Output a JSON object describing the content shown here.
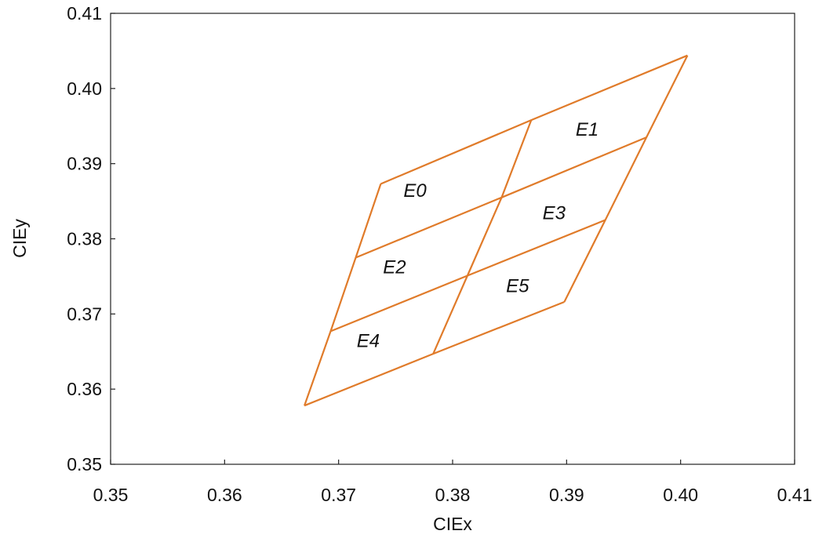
{
  "chart_data": {
    "type": "line",
    "title": "",
    "xlabel": "CIEx",
    "ylabel": "CIEy",
    "xlim": [
      0.35,
      0.41
    ],
    "ylim": [
      0.35,
      0.41
    ],
    "x_ticks": [
      "0.35",
      "0.36",
      "0.37",
      "0.38",
      "0.39",
      "0.40",
      "0.41"
    ],
    "y_ticks": [
      "0.35",
      "0.36",
      "0.37",
      "0.38",
      "0.39",
      "0.40",
      "0.41"
    ],
    "grid": false,
    "line_color": "#e07b2a",
    "quadrangles": [
      {
        "name": "E0",
        "corners": [
          [
            0.3737,
            0.3873
          ],
          [
            0.3843,
            0.3855
          ],
          [
            0.3813,
            0.3751
          ],
          [
            0.3715,
            0.3775
          ]
        ]
      },
      {
        "name": "E1",
        "corners": [
          [
            0.3869,
            0.3958
          ],
          [
            0.4006,
            0.4044
          ],
          [
            0.397,
            0.3935
          ],
          [
            0.3843,
            0.3855
          ]
        ]
      },
      {
        "name": "E2",
        "corners": [
          [
            0.3715,
            0.3775
          ],
          [
            0.3813,
            0.3751
          ],
          [
            0.3783,
            0.3647
          ],
          [
            0.3693,
            0.3677
          ]
        ]
      },
      {
        "name": "E3",
        "corners": [
          [
            0.3843,
            0.3855
          ],
          [
            0.397,
            0.3935
          ],
          [
            0.3934,
            0.3825
          ],
          [
            0.3813,
            0.3751
          ]
        ]
      },
      {
        "name": "E4",
        "corners": [
          [
            0.3693,
            0.3677
          ],
          [
            0.3783,
            0.3647
          ],
          [
            0.367,
            0.3578
          ],
          [
            0.3693,
            0.3677
          ]
        ]
      },
      {
        "name": "E5",
        "corners": [
          [
            0.3813,
            0.3751
          ],
          [
            0.3934,
            0.3825
          ],
          [
            0.3898,
            0.3716
          ],
          [
            0.3783,
            0.3647
          ]
        ]
      }
    ],
    "grid_lines": [
      [
        [
          0.3737,
          0.3873
        ],
        [
          0.3869,
          0.3958
        ],
        [
          0.4006,
          0.4044
        ]
      ],
      [
        [
          0.3715,
          0.3775
        ],
        [
          0.3843,
          0.3855
        ],
        [
          0.397,
          0.3935
        ]
      ],
      [
        [
          0.3693,
          0.3677
        ],
        [
          0.3813,
          0.3751
        ],
        [
          0.3934,
          0.3825
        ]
      ],
      [
        [
          0.367,
          0.3578
        ],
        [
          0.3783,
          0.3647
        ],
        [
          0.3898,
          0.3716
        ]
      ],
      [
        [
          0.3737,
          0.3873
        ],
        [
          0.3715,
          0.3775
        ],
        [
          0.3693,
          0.3677
        ],
        [
          0.367,
          0.3578
        ]
      ],
      [
        [
          0.3869,
          0.3958
        ],
        [
          0.3843,
          0.3855
        ],
        [
          0.3813,
          0.3751
        ],
        [
          0.3783,
          0.3647
        ]
      ],
      [
        [
          0.4006,
          0.4044
        ],
        [
          0.397,
          0.3935
        ],
        [
          0.3934,
          0.3825
        ],
        [
          0.3898,
          0.3716
        ]
      ]
    ],
    "region_labels": [
      {
        "text": "E0",
        "x": 0.3767,
        "y": 0.3856
      },
      {
        "text": "E1",
        "x": 0.3918,
        "y": 0.3937
      },
      {
        "text": "E2",
        "x": 0.3749,
        "y": 0.3754
      },
      {
        "text": "E3",
        "x": 0.3889,
        "y": 0.3826
      },
      {
        "text": "E4",
        "x": 0.3726,
        "y": 0.3656
      },
      {
        "text": "E5",
        "x": 0.3857,
        "y": 0.3729
      }
    ]
  }
}
